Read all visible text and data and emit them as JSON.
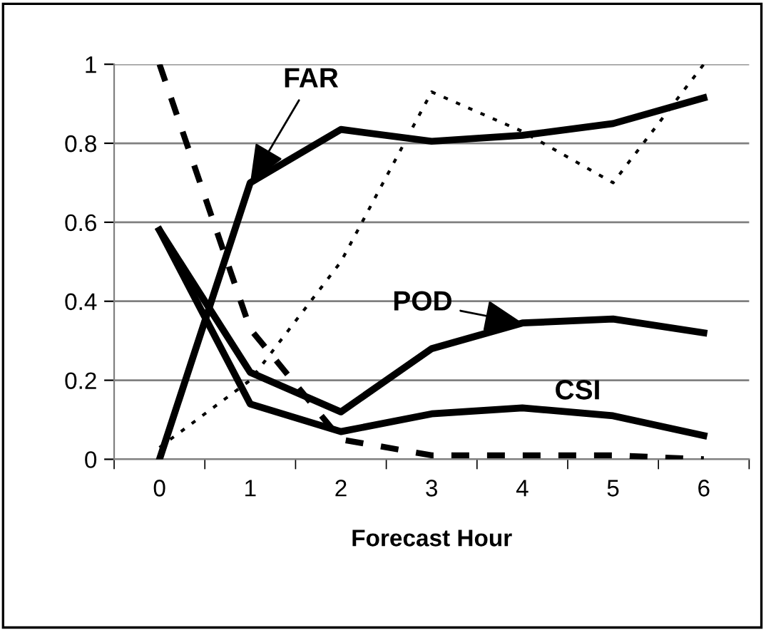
{
  "chart_data": {
    "type": "line",
    "xlabel": "Forecast Hour",
    "categories": [
      "0",
      "1",
      "2",
      "3",
      "4",
      "5",
      "6"
    ],
    "series": [
      {
        "color": "#000000",
        "line_style": "solid",
        "values": [
          0,
          0.7,
          0.835,
          0.805,
          0.82,
          0.85,
          0.915
        ]
      },
      {
        "color": "#000000",
        "line_style": "solid",
        "values": [
          0.58,
          0.22,
          0.12,
          0.28,
          0.345,
          0.355,
          0.32
        ]
      },
      {
        "color": "#000000",
        "line_style": "solid",
        "values": [
          0.58,
          0.14,
          0.07,
          0.115,
          0.13,
          0.11,
          0.06
        ]
      },
      {
        "color": "#000000",
        "line_style": "dotted",
        "values": [
          0.03,
          0.2,
          0.5,
          0.93,
          0.83,
          0.7,
          1.0
        ]
      },
      {
        "color": "#000000",
        "line_style": "dashed",
        "values": [
          1.0,
          0.33,
          0.05,
          0.01,
          0.01,
          0.01,
          0.0
        ]
      }
    ],
    "ylim": [
      0,
      1
    ],
    "yticks": [
      0,
      {
        "value": 0.2,
        "label": "0.2"
      },
      {
        "value": 0.4,
        "label": "0.4"
      },
      {
        "value": 0.6,
        "label": "0.6"
      },
      {
        "value": 0.8,
        "label": "0.8"
      },
      1
    ],
    "grid": "y",
    "marker": "none",
    "annotations": [
      {
        "text": "FAR",
        "x": "1",
        "y": 0.7
      },
      {
        "text": "POD",
        "x": "4",
        "y": 0.345
      },
      "CSI"
    ]
  }
}
